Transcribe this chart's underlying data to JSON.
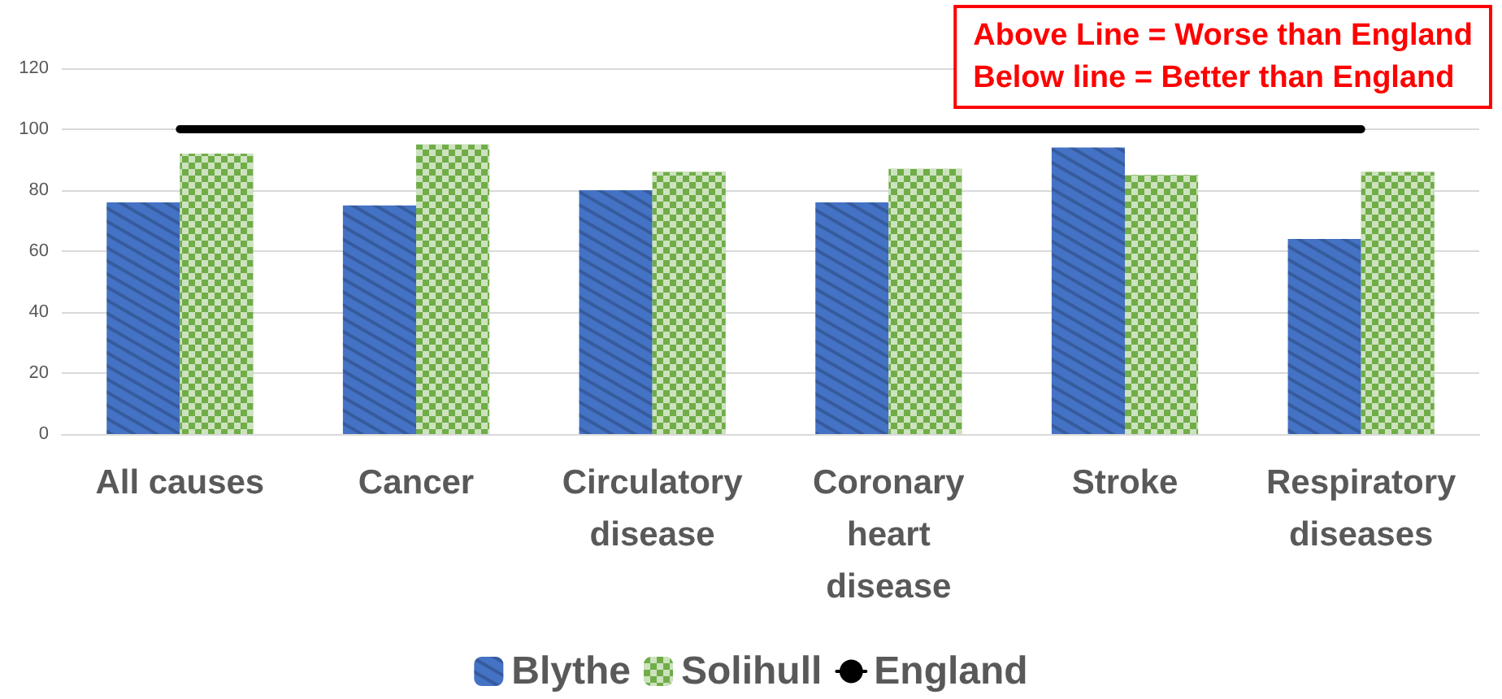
{
  "chart_data": {
    "type": "bar",
    "categories": [
      "All causes",
      "Cancer",
      "Circulatory\ndisease",
      "Coronary\nheart\ndisease",
      "Stroke",
      "Respiratory\ndiseases"
    ],
    "series": [
      {
        "name": "Blythe",
        "color": "#4472c4",
        "values": [
          76,
          75,
          80,
          76,
          94,
          64
        ]
      },
      {
        "name": "Solihull",
        "color": "#70ad47",
        "values": [
          92,
          95,
          86,
          87,
          85,
          86
        ]
      },
      {
        "name": "England",
        "type": "line",
        "color": "#000000",
        "values": [
          100,
          100,
          100,
          100,
          100,
          100
        ]
      }
    ],
    "ylim": [
      0,
      120
    ],
    "yticks": [
      0,
      20,
      40,
      60,
      80,
      100,
      120
    ],
    "grid": "y",
    "legend": "bottom",
    "marker": "none",
    "annotations": [
      "Above Line = Worse than England\nBelow line = Better than England"
    ]
  }
}
